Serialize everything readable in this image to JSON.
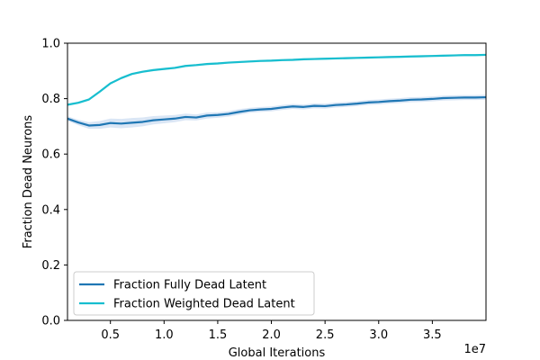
{
  "chart_data": {
    "type": "line",
    "title": "",
    "xlabel": "Global Iterations",
    "ylabel": "Fraction Dead Neurons",
    "x_offset_label": "1e7",
    "xlim": [
      1000000,
      40000000
    ],
    "ylim": [
      0.0,
      1.0
    ],
    "x_ticks": [
      5000000,
      10000000,
      15000000,
      20000000,
      25000000,
      30000000,
      35000000
    ],
    "x_tick_labels": [
      "0.5",
      "1.0",
      "1.5",
      "2.0",
      "2.5",
      "3.0",
      "3.5"
    ],
    "y_ticks": [
      0.0,
      0.2,
      0.4,
      0.6,
      0.8,
      1.0
    ],
    "y_tick_labels": [
      "0.0",
      "0.2",
      "0.4",
      "0.6",
      "0.8",
      "1.0"
    ],
    "grid": false,
    "legend": {
      "position": "lower-left"
    },
    "series": [
      {
        "name": "Fraction Fully Dead Latent",
        "color": "#1f77b4",
        "band_color": "#aec7e8",
        "x": [
          1000000,
          2000000,
          3000000,
          4000000,
          5000000,
          6000000,
          7000000,
          8000000,
          9000000,
          10000000,
          11000000,
          12000000,
          13000000,
          14000000,
          15000000,
          16000000,
          17000000,
          18000000,
          19000000,
          20000000,
          21000000,
          22000000,
          23000000,
          24000000,
          25000000,
          26000000,
          27000000,
          28000000,
          29000000,
          30000000,
          31000000,
          32000000,
          33000000,
          34000000,
          35000000,
          36000000,
          37000000,
          38000000,
          39000000,
          40000000
        ],
        "values": [
          0.728,
          0.714,
          0.703,
          0.705,
          0.712,
          0.71,
          0.713,
          0.716,
          0.722,
          0.725,
          0.728,
          0.734,
          0.732,
          0.739,
          0.741,
          0.745,
          0.752,
          0.758,
          0.761,
          0.763,
          0.768,
          0.772,
          0.77,
          0.774,
          0.773,
          0.777,
          0.779,
          0.782,
          0.786,
          0.788,
          0.791,
          0.793,
          0.796,
          0.797,
          0.799,
          0.802,
          0.803,
          0.804,
          0.804,
          0.805
        ],
        "band_halfwidth": [
          0.008,
          0.01,
          0.012,
          0.014,
          0.016,
          0.017,
          0.017,
          0.016,
          0.015,
          0.014,
          0.013,
          0.012,
          0.011,
          0.011,
          0.01,
          0.01,
          0.01,
          0.009,
          0.009,
          0.009,
          0.009,
          0.009,
          0.009,
          0.009,
          0.009,
          0.009,
          0.009,
          0.009,
          0.009,
          0.009,
          0.009,
          0.009,
          0.009,
          0.009,
          0.009,
          0.009,
          0.009,
          0.009,
          0.009,
          0.009
        ]
      },
      {
        "name": "Fraction Weighted Dead Latent",
        "color": "#17becf",
        "band_color": "#9edae5",
        "x": [
          1000000,
          2000000,
          3000000,
          4000000,
          5000000,
          6000000,
          7000000,
          8000000,
          9000000,
          10000000,
          11000000,
          12000000,
          13000000,
          14000000,
          15000000,
          16000000,
          17000000,
          18000000,
          19000000,
          20000000,
          21000000,
          22000000,
          23000000,
          24000000,
          25000000,
          26000000,
          27000000,
          28000000,
          29000000,
          30000000,
          31000000,
          32000000,
          33000000,
          34000000,
          35000000,
          36000000,
          37000000,
          38000000,
          39000000,
          40000000
        ],
        "values": [
          0.778,
          0.785,
          0.797,
          0.825,
          0.855,
          0.874,
          0.889,
          0.897,
          0.903,
          0.907,
          0.911,
          0.918,
          0.921,
          0.925,
          0.927,
          0.93,
          0.932,
          0.934,
          0.936,
          0.937,
          0.939,
          0.94,
          0.942,
          0.943,
          0.944,
          0.945,
          0.946,
          0.947,
          0.948,
          0.949,
          0.95,
          0.951,
          0.952,
          0.953,
          0.954,
          0.955,
          0.956,
          0.957,
          0.957,
          0.958
        ],
        "band_halfwidth": [
          0.004,
          0.004,
          0.004,
          0.004,
          0.004,
          0.004,
          0.004,
          0.004,
          0.004,
          0.004,
          0.004,
          0.004,
          0.004,
          0.004,
          0.004,
          0.004,
          0.004,
          0.004,
          0.004,
          0.004,
          0.004,
          0.004,
          0.004,
          0.004,
          0.004,
          0.004,
          0.004,
          0.004,
          0.004,
          0.004,
          0.004,
          0.004,
          0.004,
          0.004,
          0.004,
          0.004,
          0.004,
          0.004,
          0.004,
          0.004
        ]
      }
    ]
  }
}
